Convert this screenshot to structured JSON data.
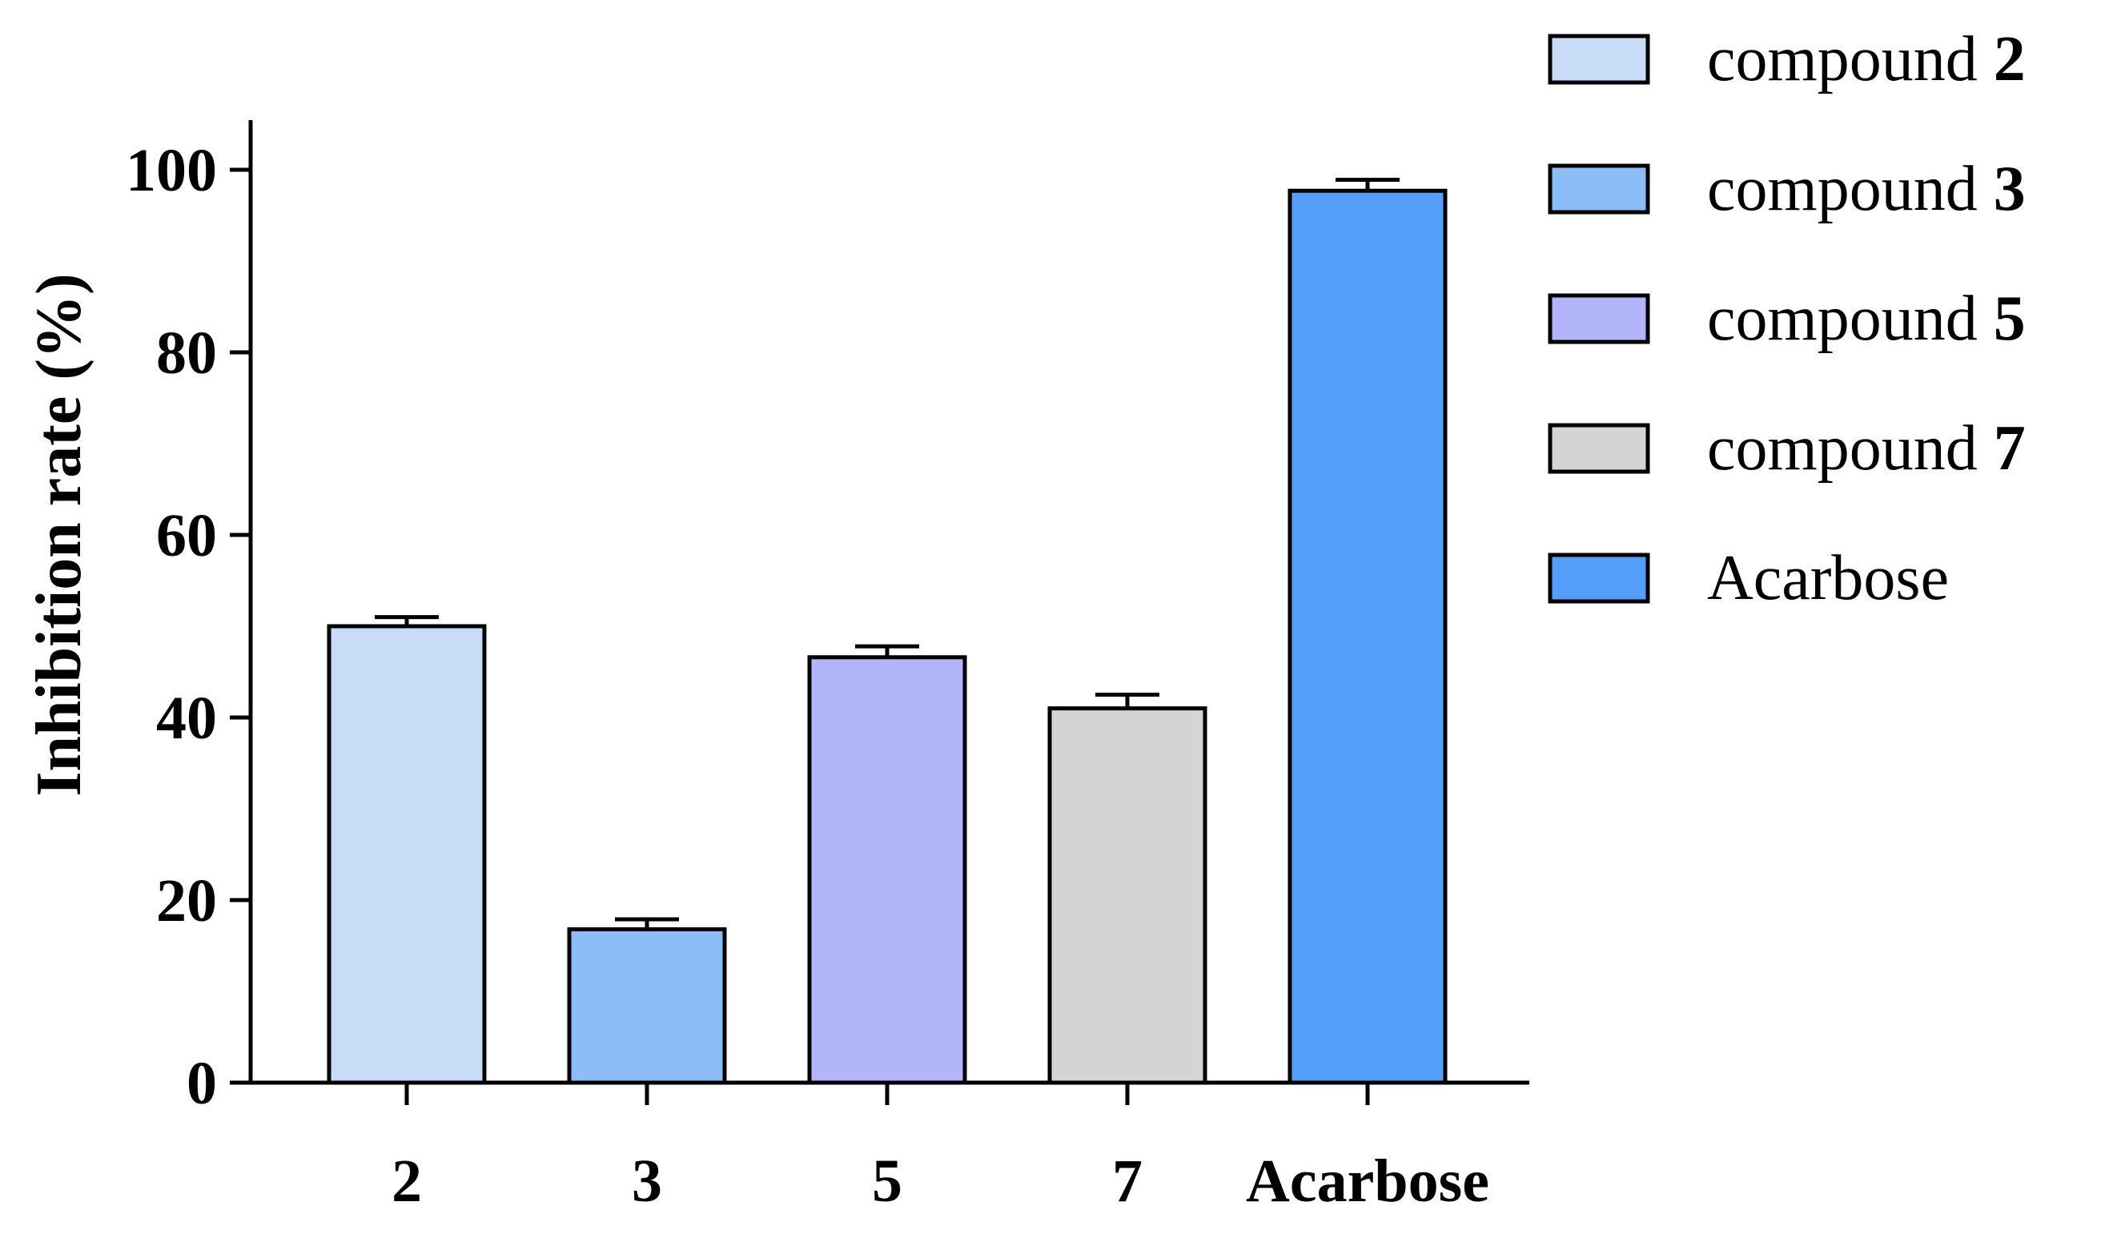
{
  "chart_data": {
    "type": "bar",
    "categories": [
      "2",
      "3",
      "5",
      "7",
      "Acarbose"
    ],
    "values": [
      50.0,
      16.8,
      46.6,
      41.0,
      97.7
    ],
    "errors": [
      1.0,
      1.1,
      1.2,
      1.5,
      1.2
    ],
    "colors": [
      "#c9dcf7",
      "#8dbdf7",
      "#b3b5fb",
      "#d4d4d4",
      "#559ffa"
    ],
    "title": "",
    "xlabel": "",
    "ylabel": "Inhibition rate (%)",
    "ylim": [
      0,
      105
    ],
    "yticks": [
      0,
      20,
      40,
      60,
      80,
      100
    ],
    "grid": false,
    "legend_position": "top-right",
    "legend": [
      {
        "prefix": "compound ",
        "number": "2",
        "color": "#c9dcf7"
      },
      {
        "prefix": "compound ",
        "number": "3",
        "color": "#8dbdf7"
      },
      {
        "prefix": "compound ",
        "number": "5",
        "color": "#b3b5fb"
      },
      {
        "prefix": "compound ",
        "number": "7",
        "color": "#d4d4d4"
      },
      {
        "prefix": "Acarbose",
        "number": "",
        "color": "#559ffa"
      }
    ]
  }
}
